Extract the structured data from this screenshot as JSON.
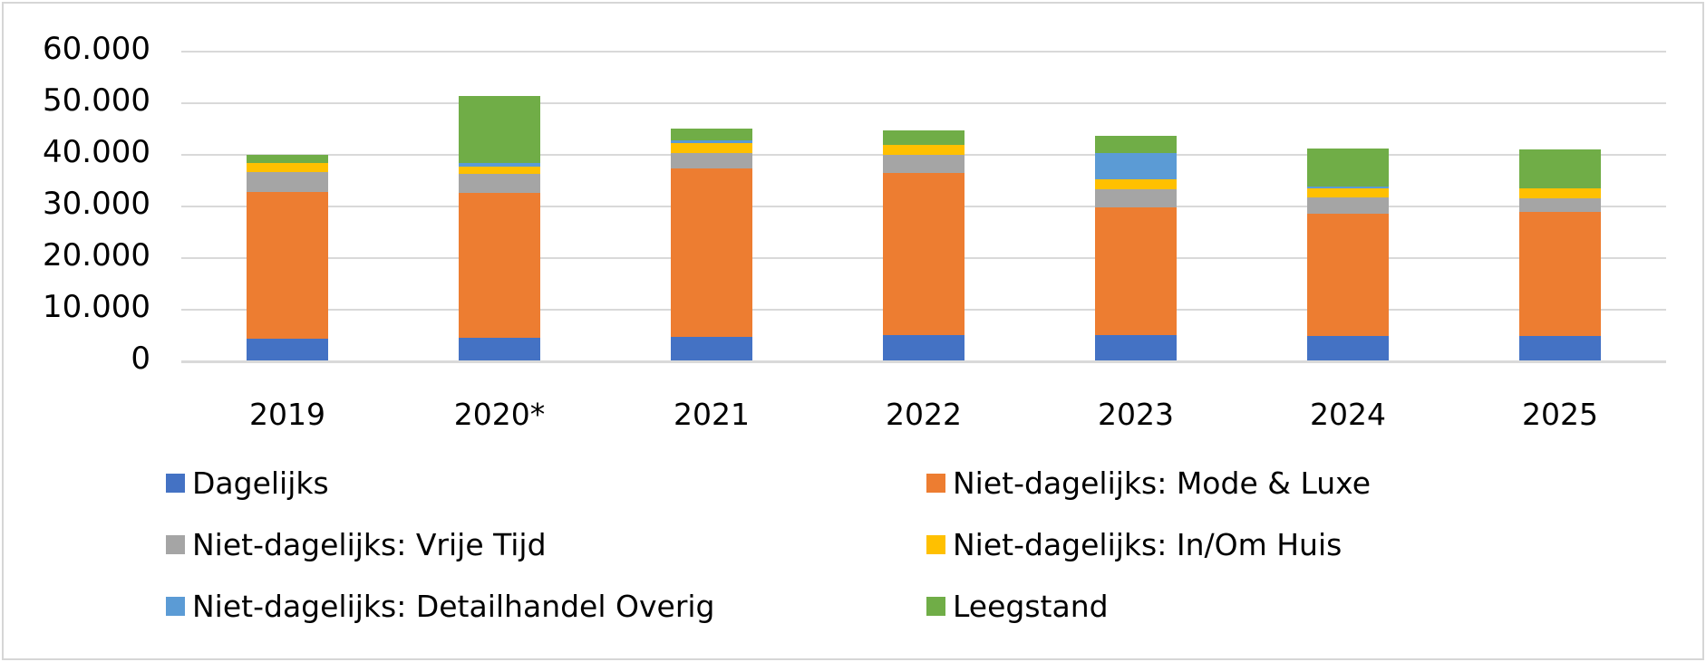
{
  "chart_data": {
    "type": "bar",
    "stacked": true,
    "categories": [
      "2019",
      "2020*",
      "2021",
      "2022",
      "2023",
      "2024",
      "2025"
    ],
    "series": [
      {
        "key": "dagelijks",
        "name": "Dagelijks",
        "color": "#4472C4",
        "values": [
          4300,
          4350,
          4650,
          4900,
          4900,
          4700,
          4700
        ]
      },
      {
        "key": "mode-luxe",
        "name": "Niet-dagelijks: Mode & Luxe",
        "color": "#ED7D31",
        "values": [
          28350,
          28150,
          32600,
          31450,
          24800,
          23800,
          24100
        ]
      },
      {
        "key": "vrije-tijd",
        "name": "Niet-dagelijks: Vrije Tijd",
        "color": "#A5A5A5",
        "values": [
          3850,
          3650,
          2950,
          3450,
          3450,
          3150,
          2650
        ]
      },
      {
        "key": "in-om-huis",
        "name": "Niet-dagelijks: In/Om Huis",
        "color": "#FFC000",
        "values": [
          1750,
          1400,
          1900,
          1950,
          1950,
          1650,
          1850
        ]
      },
      {
        "key": "detailhandel-overig",
        "name": "Niet-dagelijks: Detailhandel Overig",
        "color": "#5B9BD5",
        "values": [
          0,
          700,
          450,
          0,
          5100,
          350,
          0
        ]
      },
      {
        "key": "leegstand",
        "name": "Leegstand",
        "color": "#70AD47",
        "values": [
          1600,
          13050,
          2400,
          2900,
          3300,
          7400,
          7500
        ]
      }
    ],
    "y_ticks": [
      "60.000",
      "50.000",
      "40.000",
      "30.000",
      "20.000",
      "10.000",
      "0"
    ],
    "ylim": [
      0,
      60000
    ],
    "xlabel": "",
    "ylabel": "",
    "title": "",
    "grid": "horizontal",
    "gridline_color": "#d9d9d9",
    "frame_border_color": "#d6d6d6",
    "legend_position": "bottom",
    "legend_columns": 2
  }
}
